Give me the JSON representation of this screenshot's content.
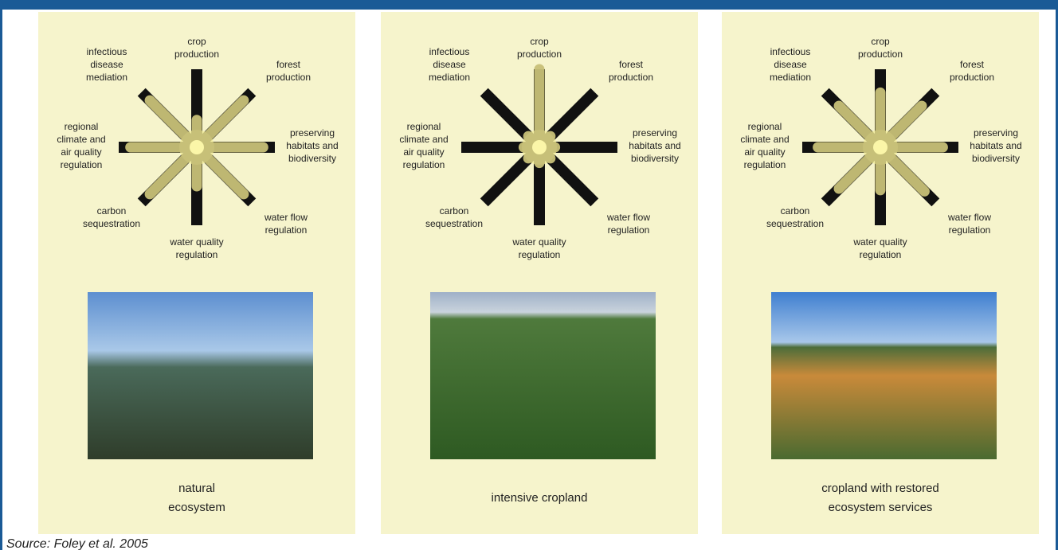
{
  "services": [
    [
      "crop",
      "production"
    ],
    [
      "forest",
      "production"
    ],
    [
      "preserving",
      "habitats and",
      "biodiversity"
    ],
    [
      "water flow",
      "regulation"
    ],
    [
      "water quality",
      "regulation"
    ],
    [
      "carbon",
      "sequestration"
    ],
    [
      "regional",
      "climate and",
      "air quality",
      "regulation"
    ],
    [
      "infectious",
      "disease",
      "mediation"
    ]
  ],
  "panels": [
    {
      "caption": [
        "natural",
        "ecosystem"
      ],
      "levels": [
        0.35,
        0.85,
        0.85,
        0.85,
        0.5,
        0.85,
        0.85,
        0.85
      ]
    },
    {
      "caption": [
        "intensive cropland"
      ],
      "levels": [
        1,
        0.2,
        0.2,
        0.2,
        0.2,
        0.2,
        0.2,
        0.2
      ]
    },
    {
      "caption": [
        "cropland with restored",
        "ecosystem services"
      ],
      "levels": [
        0.7,
        0.75,
        0.8,
        0.8,
        0.55,
        0.75,
        0.8,
        0.75
      ]
    }
  ],
  "source": "Source: Foley et al. 2005"
}
